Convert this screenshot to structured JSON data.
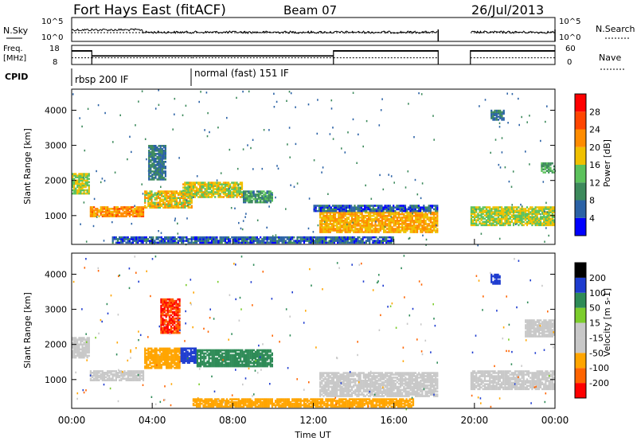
{
  "header": {
    "title": "Fort Hays East (fitACF)",
    "beam": "Beam 07",
    "date": "26/Jul/2013"
  },
  "noise_panel": {
    "left_label": "N.Sky",
    "right_label": "N.Search",
    "left_ticks": [
      "10^5",
      "10^0"
    ],
    "right_ticks": [
      "10^5",
      "10^0"
    ]
  },
  "freq_panel": {
    "left_label_1": "Freq.",
    "left_label_2": "[MHz]",
    "right_label": "Nave",
    "left_ticks": [
      "18",
      "8"
    ],
    "right_ticks": [
      "60",
      "0"
    ],
    "steps": [
      {
        "start": 0.0,
        "end": 1.0,
        "freq": 15.8,
        "nave": 25
      },
      {
        "start": 1.0,
        "end": 6.0,
        "freq": 12.3,
        "nave": 25
      },
      {
        "start": 6.0,
        "end": 13.0,
        "freq": 12.3,
        "nave": 25
      },
      {
        "start": 13.0,
        "end": 18.2,
        "freq": 15.8,
        "nave": 25
      },
      {
        "start": 19.8,
        "end": 24.0,
        "freq": 15.8,
        "nave": 25
      }
    ]
  },
  "cpid": {
    "label": "CPID",
    "segments": [
      {
        "start": 0.0,
        "end": 6.0,
        "name": "rbsp 200 IF"
      },
      {
        "start": 6.0,
        "end": 24.0,
        "name": "normal (fast) 151 IF"
      }
    ]
  },
  "colors": {
    "power_scale": [
      "#0000ff",
      "#2b62a6",
      "#3d8a5c",
      "#5cc25c",
      "#f0c000",
      "#ff8c00",
      "#ff4500",
      "#ff0000"
    ],
    "velocity_scale": [
      "#ff0000",
      "#ff6400",
      "#ffa500",
      "#c8c8c8",
      "#c8c8c8",
      "#7ccd2c",
      "#2e8b57",
      "#1e3ccf"
    ]
  },
  "chart_data": [
    {
      "type": "heatmap",
      "title": "",
      "xlabel": "Time UT",
      "ylabel": "Slant Range [km]",
      "xlim": [
        0,
        24
      ],
      "ylim": [
        180,
        4600
      ],
      "x_ticks": [
        "00:00",
        "04:00",
        "08:00",
        "12:00",
        "16:00",
        "20:00",
        "00:00"
      ],
      "y_ticks": [
        "1000",
        "2000",
        "3000",
        "4000"
      ],
      "colorbar": {
        "label": "Power [dB]",
        "ticks": [
          "28",
          "24",
          "20",
          "16",
          "12",
          "8",
          "4"
        ],
        "range": [
          0,
          30
        ]
      },
      "echo_regions": [
        {
          "t0": 0.0,
          "t1": 0.9,
          "r0": 1600,
          "r1": 2200,
          "value": 16
        },
        {
          "t0": 0.9,
          "t1": 3.6,
          "r0": 950,
          "r1": 1250,
          "value": 22
        },
        {
          "t0": 3.6,
          "t1": 6.0,
          "r0": 1200,
          "r1": 1700,
          "value": 18
        },
        {
          "t0": 5.5,
          "t1": 8.5,
          "r0": 1500,
          "r1": 1950,
          "value": 17
        },
        {
          "t0": 8.5,
          "t1": 10.0,
          "r0": 1350,
          "r1": 1700,
          "value": 10
        },
        {
          "t0": 3.8,
          "t1": 4.7,
          "r0": 2000,
          "r1": 3000,
          "value": 8
        },
        {
          "t0": 12.3,
          "t1": 18.2,
          "r0": 500,
          "r1": 1100,
          "value": 20
        },
        {
          "t0": 12.0,
          "t1": 18.2,
          "r0": 1100,
          "r1": 1300,
          "value": 6
        },
        {
          "t0": 19.8,
          "t1": 24.0,
          "r0": 700,
          "r1": 1250,
          "value": 16
        },
        {
          "t0": 23.3,
          "t1": 24.0,
          "r0": 2200,
          "r1": 2500,
          "value": 12
        },
        {
          "t0": 20.8,
          "t1": 21.5,
          "r0": 3700,
          "r1": 4000,
          "value": 8
        },
        {
          "t0": 2.0,
          "t1": 16.0,
          "r0": 200,
          "r1": 400,
          "value": 6
        }
      ]
    },
    {
      "type": "heatmap",
      "title": "",
      "xlabel": "Time UT",
      "ylabel": "Slant Range [km]",
      "xlim": [
        0,
        24
      ],
      "ylim": [
        180,
        4600
      ],
      "x_ticks": [
        "00:00",
        "04:00",
        "08:00",
        "12:00",
        "16:00",
        "20:00",
        "00:00"
      ],
      "y_ticks": [
        "1000",
        "2000",
        "3000",
        "4000"
      ],
      "colorbar": {
        "label": "Velocity [m s-1]",
        "ticks": [
          "200",
          "100",
          "50",
          "15",
          "-15",
          "-50",
          "-100",
          "-200"
        ],
        "range": [
          -250,
          250
        ]
      },
      "echo_regions": [
        {
          "t0": 0.0,
          "t1": 0.9,
          "r0": 1600,
          "r1": 2200,
          "value": 0
        },
        {
          "t0": 0.9,
          "t1": 3.6,
          "r0": 950,
          "r1": 1250,
          "value": 0
        },
        {
          "t0": 3.6,
          "t1": 5.4,
          "r0": 1300,
          "r1": 1900,
          "value": -60
        },
        {
          "t0": 5.4,
          "t1": 6.2,
          "r0": 1450,
          "r1": 1900,
          "value": 220
        },
        {
          "t0": 6.2,
          "t1": 10.0,
          "r0": 1350,
          "r1": 1850,
          "value": 60
        },
        {
          "t0": 4.4,
          "t1": 5.4,
          "r0": 2300,
          "r1": 3300,
          "value": -200
        },
        {
          "t0": 12.3,
          "t1": 18.2,
          "r0": 500,
          "r1": 1200,
          "value": 0
        },
        {
          "t0": 19.8,
          "t1": 24.0,
          "r0": 700,
          "r1": 1250,
          "value": 0
        },
        {
          "t0": 22.5,
          "t1": 24.0,
          "r0": 2200,
          "r1": 2700,
          "value": 0
        },
        {
          "t0": 20.8,
          "t1": 21.3,
          "r0": 3700,
          "r1": 4000,
          "value": 220
        },
        {
          "t0": 6.0,
          "t1": 17.0,
          "r0": 200,
          "r1": 450,
          "value": -60
        }
      ]
    }
  ]
}
